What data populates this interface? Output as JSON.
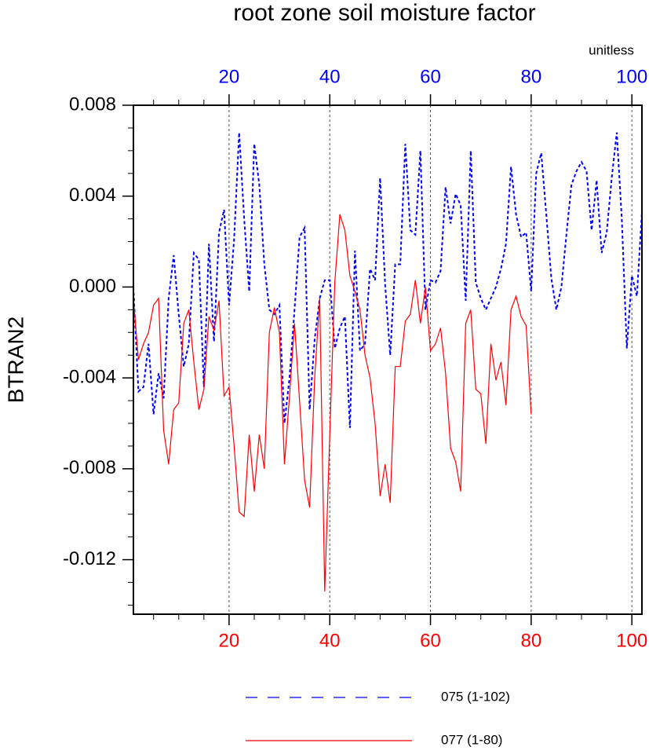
{
  "chart_data": {
    "type": "line",
    "title": "root zone soil moisture factor",
    "ylabel": "BTRAN2",
    "units": "unitless",
    "xlim": [
      1,
      102
    ],
    "xticks": [
      20,
      40,
      60,
      80,
      100
    ],
    "x2lim": [
      1,
      102
    ],
    "x2ticks": [
      20,
      40,
      60,
      80,
      100
    ],
    "ylim": [
      -0.0144,
      0.008
    ],
    "yticks": [
      0.008,
      0.004,
      {
        "value": 0,
        "label": "0.000"
      },
      -0.004,
      -0.008,
      -0.012
    ],
    "grid": true,
    "series": [
      {
        "name": "075 (1-102)",
        "color": "#0000ff",
        "dashed": true,
        "axis": "x2",
        "x": [
          1,
          2,
          3,
          4,
          5,
          6,
          7,
          8,
          9,
          10,
          11,
          12,
          13,
          14,
          15,
          16,
          17,
          18,
          19,
          20,
          21,
          22,
          23,
          24,
          25,
          26,
          27,
          28,
          29,
          30,
          31,
          32,
          33,
          34,
          35,
          36,
          37,
          38,
          39,
          40,
          41,
          42,
          43,
          44,
          45,
          46,
          47,
          48,
          49,
          50,
          51,
          52,
          53,
          54,
          55,
          56,
          57,
          58,
          59,
          60,
          61,
          62,
          63,
          64,
          65,
          66,
          67,
          68,
          69,
          70,
          71,
          72,
          73,
          74,
          75,
          76,
          77,
          78,
          79,
          80,
          81,
          82,
          83,
          84,
          85,
          86,
          87,
          88,
          89,
          90,
          91,
          92,
          93,
          94,
          95,
          96,
          97,
          98,
          99,
          100,
          101,
          102
        ],
        "values": [
          0.0,
          -0.0046,
          -0.0044,
          -0.0025,
          -0.0056,
          -0.0038,
          -0.0049,
          -0.0005,
          0.0014,
          -0.0012,
          -0.0035,
          -0.0025,
          0.0015,
          0.0012,
          -0.0044,
          0.0019,
          -0.0024,
          0.0024,
          0.0034,
          -0.0008,
          0.0021,
          0.0068,
          0.003,
          -0.0002,
          0.0063,
          0.0045,
          0.001,
          -0.001,
          -0.0012,
          -0.0008,
          -0.006,
          -0.004,
          -0.001,
          0.0022,
          0.0026,
          -0.0054,
          -0.0023,
          -0.0005,
          0.0003,
          0.0003,
          -0.0027,
          -0.0018,
          -0.0013,
          -0.0062,
          0.0016,
          -0.0028,
          -0.0025,
          0.0008,
          0.0003,
          0.0048,
          0.0001,
          -0.003,
          0.001,
          0.001,
          0.0063,
          0.0025,
          0.0023,
          0.006,
          -0.001,
          0.0003,
          0.0002,
          0.0007,
          0.0044,
          0.0028,
          0.0041,
          0.0036,
          -0.0006,
          0.006,
          0.0002,
          -0.0005,
          -0.001,
          -0.0005,
          0.0,
          0.0008,
          0.0019,
          0.0053,
          0.0032,
          0.0022,
          0.0024,
          -0.0002,
          0.005,
          0.0059,
          0.0032,
          0.0004,
          -0.001,
          0.0,
          0.0023,
          0.0045,
          0.0051,
          0.0055,
          0.0051,
          0.0025,
          0.0047,
          0.0015,
          0.0024,
          0.0048,
          0.0068,
          0.003,
          -0.0027,
          0.0005,
          -0.0004,
          0.0033
        ]
      },
      {
        "name": "077 (1-80)",
        "color": "#ff0000",
        "dashed": false,
        "axis": "x",
        "x": [
          1,
          2,
          3,
          4,
          5,
          6,
          7,
          8,
          9,
          10,
          11,
          12,
          13,
          14,
          15,
          16,
          17,
          18,
          19,
          20,
          21,
          22,
          23,
          24,
          25,
          26,
          27,
          28,
          29,
          30,
          31,
          32,
          33,
          34,
          35,
          36,
          37,
          38,
          39,
          40,
          41,
          42,
          43,
          44,
          45,
          46,
          47,
          48,
          49,
          50,
          51,
          52,
          53,
          54,
          55,
          56,
          57,
          58,
          59,
          60,
          61,
          62,
          63,
          64,
          65,
          66,
          67,
          68,
          69,
          70,
          71,
          72,
          73,
          74,
          75,
          76,
          77,
          78,
          79,
          80
        ],
        "values": [
          -0.0005,
          -0.0032,
          -0.0025,
          -0.002,
          -0.0008,
          -0.0005,
          -0.0063,
          -0.0078,
          -0.0054,
          -0.0051,
          -0.0016,
          -0.001,
          -0.0033,
          -0.0054,
          -0.0045,
          -0.0013,
          -0.0019,
          -0.0006,
          -0.0048,
          -0.0044,
          -0.007,
          -0.0099,
          -0.0101,
          -0.0065,
          -0.009,
          -0.0065,
          -0.008,
          -0.002,
          -0.0009,
          -0.002,
          -0.0078,
          -0.0048,
          -0.0016,
          -0.005,
          -0.0085,
          -0.0097,
          -0.004,
          -0.0005,
          -0.0134,
          -0.0065,
          0.0002,
          0.0032,
          0.0025,
          0.0005,
          -0.0002,
          -0.001,
          -0.003,
          -0.004,
          -0.006,
          -0.0092,
          -0.0078,
          -0.0095,
          -0.0035,
          -0.0035,
          -0.0015,
          -0.0012,
          0.0003,
          -0.0016,
          0.0,
          -0.0028,
          -0.0025,
          -0.0018,
          -0.0038,
          -0.0071,
          -0.0077,
          -0.009,
          -0.0016,
          -0.001,
          -0.0045,
          -0.0047,
          -0.0069,
          -0.0025,
          -0.0041,
          -0.0033,
          -0.0052,
          -0.001,
          -0.0004,
          -0.0013,
          -0.0017,
          -0.0056
        ]
      }
    ]
  }
}
